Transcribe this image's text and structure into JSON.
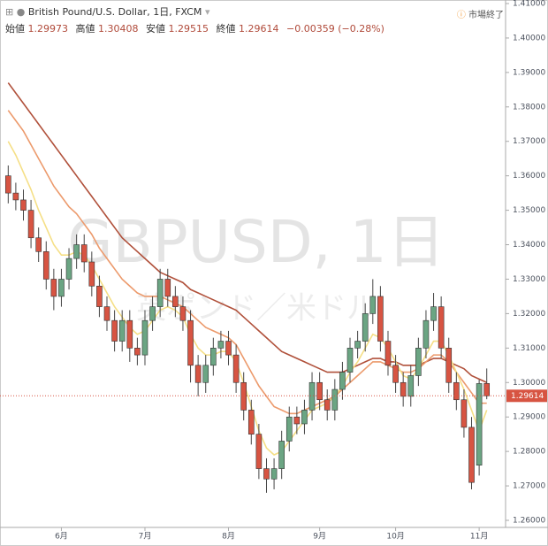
{
  "chart_data": {
    "type": "candlestick",
    "title": "British Pound/U.S. Dollar, 1日, FXCM",
    "status": "市場終了",
    "watermark": "GBPUSD, 1日",
    "watermark_subtitle": "英ポンド／米ドル",
    "header_labels": {
      "open": "始値",
      "high": "高値",
      "low": "安値",
      "close": "終値"
    },
    "change_label": "−0.00359 (−0.28%)",
    "categories": [
      null,
      null,
      null,
      null,
      null,
      null,
      null,
      "6月",
      null,
      null,
      null,
      null,
      null,
      null,
      null,
      null,
      null,
      null,
      "7月",
      null,
      null,
      null,
      null,
      null,
      null,
      null,
      null,
      null,
      null,
      "8月",
      null,
      null,
      null,
      null,
      null,
      null,
      null,
      null,
      null,
      null,
      null,
      "9月",
      null,
      null,
      null,
      null,
      null,
      null,
      null,
      null,
      null,
      "10月",
      null,
      null,
      null,
      null,
      null,
      null,
      null,
      null,
      null,
      null,
      "11月",
      null
    ],
    "open": [
      1.36,
      1.355,
      1.353,
      1.35,
      1.342,
      1.338,
      1.33,
      1.325,
      1.33,
      1.336,
      1.34,
      1.335,
      1.328,
      1.322,
      1.318,
      1.312,
      1.318,
      1.31,
      1.308,
      1.318,
      1.322,
      1.33,
      1.325,
      1.322,
      1.318,
      1.305,
      1.3,
      1.305,
      1.31,
      1.312,
      1.308,
      1.3,
      1.292,
      1.285,
      1.275,
      1.272,
      1.275,
      1.283,
      1.29,
      1.288,
      1.292,
      1.3,
      1.295,
      1.292,
      1.298,
      1.303,
      1.31,
      1.312,
      1.32,
      1.325,
      1.312,
      1.305,
      1.3,
      1.296,
      1.302,
      1.31,
      1.318,
      1.322,
      1.31,
      1.3,
      1.295,
      1.287,
      1.276,
      1.29973
    ],
    "high": [
      1.363,
      1.358,
      1.356,
      1.353,
      1.345,
      1.341,
      1.333,
      1.333,
      1.339,
      1.343,
      1.343,
      1.338,
      1.331,
      1.325,
      1.321,
      1.321,
      1.321,
      1.313,
      1.321,
      1.325,
      1.333,
      1.333,
      1.328,
      1.325,
      1.321,
      1.308,
      1.308,
      1.313,
      1.315,
      1.315,
      1.311,
      1.303,
      1.295,
      1.288,
      1.278,
      1.278,
      1.286,
      1.293,
      1.293,
      1.295,
      1.303,
      1.303,
      1.298,
      1.301,
      1.306,
      1.313,
      1.315,
      1.323,
      1.33,
      1.328,
      1.315,
      1.308,
      1.303,
      1.305,
      1.313,
      1.321,
      1.326,
      1.325,
      1.313,
      1.303,
      1.298,
      1.29,
      1.3008,
      1.30408
    ],
    "low": [
      1.352,
      1.35,
      1.347,
      1.339,
      1.335,
      1.327,
      1.321,
      1.322,
      1.327,
      1.333,
      1.332,
      1.325,
      1.319,
      1.315,
      1.309,
      1.309,
      1.306,
      1.305,
      1.305,
      1.315,
      1.319,
      1.322,
      1.319,
      1.315,
      1.3,
      1.296,
      1.297,
      1.302,
      1.307,
      1.305,
      1.297,
      1.289,
      1.282,
      1.272,
      1.268,
      1.269,
      1.272,
      1.28,
      1.285,
      1.285,
      1.289,
      1.292,
      1.289,
      1.289,
      1.295,
      1.3,
      1.307,
      1.309,
      1.317,
      1.309,
      1.302,
      1.297,
      1.293,
      1.293,
      1.299,
      1.307,
      1.315,
      1.307,
      1.297,
      1.292,
      1.284,
      1.269,
      1.273,
      1.29515
    ],
    "close": [
      1.355,
      1.353,
      1.35,
      1.342,
      1.338,
      1.33,
      1.325,
      1.33,
      1.336,
      1.34,
      1.335,
      1.328,
      1.322,
      1.318,
      1.312,
      1.318,
      1.31,
      1.308,
      1.318,
      1.322,
      1.33,
      1.325,
      1.322,
      1.318,
      1.305,
      1.3,
      1.305,
      1.31,
      1.312,
      1.308,
      1.3,
      1.292,
      1.285,
      1.275,
      1.272,
      1.275,
      1.283,
      1.29,
      1.288,
      1.292,
      1.3,
      1.295,
      1.292,
      1.298,
      1.303,
      1.31,
      1.312,
      1.32,
      1.325,
      1.312,
      1.305,
      1.3,
      1.296,
      1.302,
      1.31,
      1.318,
      1.322,
      1.31,
      1.3,
      1.295,
      1.287,
      1.271,
      1.2997,
      1.29614
    ],
    "up_color": "#6ba583",
    "down_color": "#d75442",
    "series": [
      {
        "color": "#b0503a",
        "values": [
          1.387,
          1.384,
          1.381,
          1.378,
          1.375,
          1.372,
          1.369,
          1.366,
          1.363,
          1.36,
          1.357,
          1.354,
          1.351,
          1.348,
          1.345,
          1.342,
          1.34,
          1.338,
          1.336,
          1.334,
          1.332,
          1.331,
          1.33,
          1.329,
          1.327,
          1.326,
          1.325,
          1.324,
          1.323,
          1.322,
          1.321,
          1.319,
          1.317,
          1.315,
          1.313,
          1.311,
          1.309,
          1.308,
          1.307,
          1.306,
          1.305,
          1.304,
          1.303,
          1.303,
          1.303,
          1.304,
          1.305,
          1.306,
          1.307,
          1.307,
          1.306,
          1.306,
          1.305,
          1.305,
          1.305,
          1.306,
          1.307,
          1.307,
          1.306,
          1.305,
          1.304,
          1.302,
          1.301,
          1.3
        ]
      },
      {
        "color": "#ec9a6c",
        "values": [
          1.379,
          1.376,
          1.373,
          1.369,
          1.365,
          1.361,
          1.357,
          1.354,
          1.351,
          1.349,
          1.346,
          1.343,
          1.339,
          1.336,
          1.333,
          1.33,
          1.328,
          1.326,
          1.325,
          1.325,
          1.325,
          1.324,
          1.323,
          1.322,
          1.32,
          1.318,
          1.316,
          1.315,
          1.314,
          1.313,
          1.311,
          1.307,
          1.303,
          1.299,
          1.296,
          1.293,
          1.292,
          1.291,
          1.291,
          1.292,
          1.293,
          1.294,
          1.295,
          1.296,
          1.298,
          1.3,
          1.302,
          1.304,
          1.306,
          1.306,
          1.305,
          1.304,
          1.303,
          1.303,
          1.304,
          1.306,
          1.308,
          1.308,
          1.306,
          1.303,
          1.3,
          1.297,
          1.294,
          1.294
        ]
      },
      {
        "color": "#f5df86",
        "values": [
          1.37,
          1.366,
          1.361,
          1.356,
          1.35,
          1.345,
          1.34,
          1.337,
          1.337,
          1.338,
          1.337,
          1.334,
          1.33,
          1.326,
          1.322,
          1.319,
          1.316,
          1.314,
          1.315,
          1.318,
          1.321,
          1.322,
          1.321,
          1.319,
          1.314,
          1.31,
          1.308,
          1.308,
          1.309,
          1.309,
          1.306,
          1.3,
          1.293,
          1.286,
          1.281,
          1.279,
          1.28,
          1.283,
          1.286,
          1.289,
          1.292,
          1.293,
          1.294,
          1.296,
          1.299,
          1.303,
          1.306,
          1.31,
          1.314,
          1.313,
          1.31,
          1.306,
          1.302,
          1.301,
          1.304,
          1.308,
          1.312,
          1.312,
          1.308,
          1.303,
          1.298,
          1.292,
          1.286,
          1.292
        ]
      }
    ],
    "ylim": [
      1.26,
      1.41
    ],
    "yticks": [
      {
        "value": 1.26,
        "label": "1.26000"
      },
      {
        "value": 1.27,
        "label": "1.27000"
      },
      {
        "value": 1.28,
        "label": "1.28000"
      },
      {
        "value": 1.29,
        "label": "1.29000"
      },
      {
        "value": 1.3,
        "label": "1.30000"
      },
      {
        "value": 1.31,
        "label": "1.31000"
      },
      {
        "value": 1.32,
        "label": "1.32000"
      },
      {
        "value": 1.33,
        "label": "1.33000"
      },
      {
        "value": 1.34,
        "label": "1.34000"
      },
      {
        "value": 1.35,
        "label": "1.35000"
      },
      {
        "value": 1.36,
        "label": "1.36000"
      },
      {
        "value": 1.37,
        "label": "1.37000"
      },
      {
        "value": 1.38,
        "label": "1.38000"
      },
      {
        "value": 1.39,
        "label": "1.39000"
      },
      {
        "value": 1.4,
        "label": "1.40000"
      },
      {
        "value": 1.41,
        "label": "1.41000"
      }
    ],
    "price_line_color": "#d75442"
  }
}
